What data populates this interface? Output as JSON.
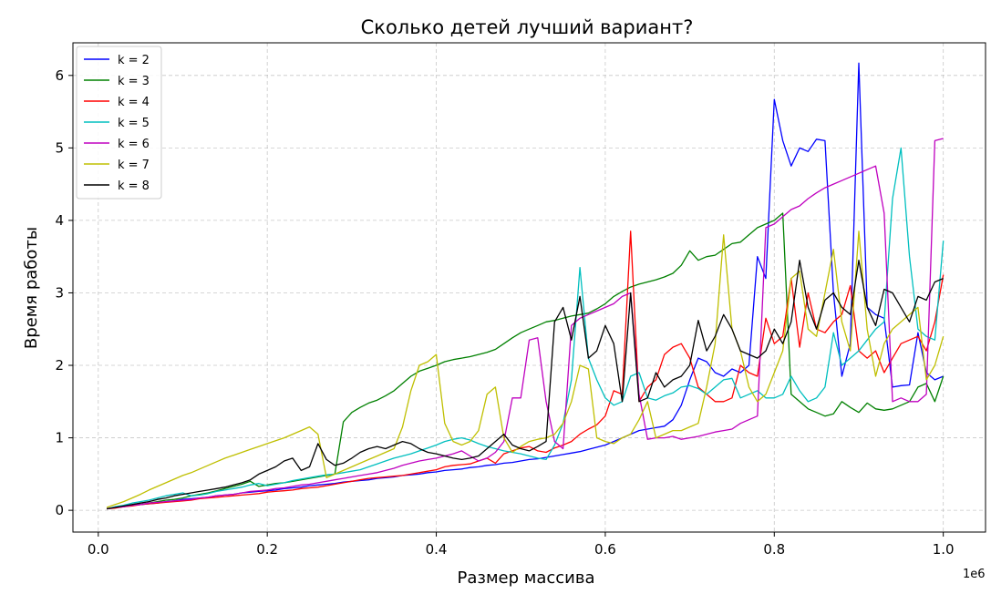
{
  "chart_data": {
    "type": "line",
    "title": "Сколько детей лучший вариант?",
    "xlabel": "Размер массива",
    "ylabel": "Время работы",
    "x_offset_label": "1e6",
    "xlim": [
      -0.03,
      1.05
    ],
    "ylim": [
      -0.3,
      6.45
    ],
    "x_ticks": [
      0.0,
      0.2,
      0.4,
      0.6,
      0.8,
      1.0
    ],
    "x_tick_labels": [
      "0.0",
      "0.2",
      "0.4",
      "0.6",
      "0.8",
      "1.0"
    ],
    "y_ticks": [
      0,
      1,
      2,
      3,
      4,
      5,
      6
    ],
    "y_tick_labels": [
      "0",
      "1",
      "2",
      "3",
      "4",
      "5",
      "6"
    ],
    "grid": true,
    "legend_position": "top-left",
    "x": [
      0.01,
      0.02,
      0.03,
      0.04,
      0.05,
      0.06,
      0.07,
      0.08,
      0.09,
      0.1,
      0.11,
      0.12,
      0.13,
      0.14,
      0.15,
      0.16,
      0.17,
      0.18,
      0.19,
      0.2,
      0.21,
      0.22,
      0.23,
      0.24,
      0.25,
      0.26,
      0.27,
      0.28,
      0.29,
      0.3,
      0.31,
      0.32,
      0.33,
      0.34,
      0.35,
      0.36,
      0.37,
      0.38,
      0.39,
      0.4,
      0.41,
      0.42,
      0.43,
      0.44,
      0.45,
      0.46,
      0.47,
      0.48,
      0.49,
      0.5,
      0.51,
      0.52,
      0.53,
      0.54,
      0.55,
      0.56,
      0.57,
      0.58,
      0.59,
      0.6,
      0.61,
      0.62,
      0.63,
      0.64,
      0.65,
      0.66,
      0.67,
      0.68,
      0.69,
      0.7,
      0.71,
      0.72,
      0.73,
      0.74,
      0.75,
      0.76,
      0.77,
      0.78,
      0.79,
      0.8,
      0.81,
      0.82,
      0.83,
      0.84,
      0.85,
      0.86,
      0.87,
      0.88,
      0.89,
      0.9,
      0.91,
      0.92,
      0.93,
      0.94,
      0.95,
      0.96,
      0.97,
      0.98,
      0.99,
      1.0
    ],
    "series": [
      {
        "name": "k = 2",
        "color": "#0000ff",
        "values": [
          0.02,
          0.04,
          0.05,
          0.07,
          0.08,
          0.09,
          0.1,
          0.12,
          0.13,
          0.15,
          0.16,
          0.17,
          0.18,
          0.2,
          0.21,
          0.22,
          0.24,
          0.25,
          0.26,
          0.27,
          0.28,
          0.3,
          0.31,
          0.32,
          0.34,
          0.35,
          0.36,
          0.37,
          0.39,
          0.4,
          0.41,
          0.42,
          0.44,
          0.45,
          0.46,
          0.48,
          0.49,
          0.5,
          0.52,
          0.53,
          0.55,
          0.56,
          0.57,
          0.59,
          0.6,
          0.62,
          0.63,
          0.65,
          0.66,
          0.68,
          0.7,
          0.71,
          0.73,
          0.75,
          0.77,
          0.79,
          0.81,
          0.84,
          0.87,
          0.9,
          0.95,
          1.0,
          1.05,
          1.1,
          1.12,
          1.14,
          1.16,
          1.25,
          1.45,
          1.8,
          2.1,
          2.05,
          1.9,
          1.85,
          1.95,
          1.9,
          2.0,
          3.5,
          3.2,
          5.67,
          5.1,
          4.75,
          5.0,
          4.95,
          5.12,
          5.1,
          3.0,
          1.85,
          2.3,
          6.17,
          2.8,
          2.7,
          2.65,
          1.7,
          1.72,
          1.73,
          2.45,
          1.9,
          1.8,
          1.85
        ]
      },
      {
        "name": "k = 3",
        "color": "#008000",
        "values": [
          0.02,
          0.04,
          0.06,
          0.07,
          0.08,
          0.1,
          0.12,
          0.14,
          0.15,
          0.17,
          0.2,
          0.22,
          0.24,
          0.27,
          0.3,
          0.33,
          0.36,
          0.4,
          0.33,
          0.35,
          0.37,
          0.38,
          0.4,
          0.42,
          0.44,
          0.46,
          0.48,
          0.5,
          1.22,
          1.35,
          1.42,
          1.48,
          1.52,
          1.58,
          1.65,
          1.75,
          1.85,
          1.92,
          1.96,
          2.0,
          2.05,
          2.08,
          2.1,
          2.12,
          2.15,
          2.18,
          2.22,
          2.3,
          2.38,
          2.45,
          2.5,
          2.55,
          2.6,
          2.62,
          2.65,
          2.68,
          2.7,
          2.72,
          2.78,
          2.85,
          2.95,
          3.02,
          3.08,
          3.12,
          3.15,
          3.18,
          3.22,
          3.27,
          3.38,
          3.58,
          3.45,
          3.5,
          3.52,
          3.6,
          3.68,
          3.7,
          3.8,
          3.9,
          3.95,
          4.0,
          4.1,
          1.6,
          1.5,
          1.4,
          1.35,
          1.3,
          1.33,
          1.5,
          1.42,
          1.35,
          1.48,
          1.4,
          1.38,
          1.4,
          1.45,
          1.5,
          1.7,
          1.75,
          1.5,
          1.85
        ]
      },
      {
        "name": "k = 4",
        "color": "#ff0000",
        "values": [
          0.02,
          0.03,
          0.05,
          0.06,
          0.08,
          0.09,
          0.1,
          0.11,
          0.12,
          0.13,
          0.14,
          0.16,
          0.17,
          0.18,
          0.19,
          0.2,
          0.21,
          0.22,
          0.23,
          0.25,
          0.26,
          0.27,
          0.28,
          0.3,
          0.31,
          0.32,
          0.34,
          0.36,
          0.38,
          0.4,
          0.42,
          0.44,
          0.45,
          0.46,
          0.47,
          0.48,
          0.5,
          0.52,
          0.54,
          0.56,
          0.6,
          0.62,
          0.63,
          0.64,
          0.68,
          0.72,
          0.65,
          0.78,
          0.82,
          0.86,
          0.88,
          0.82,
          0.8,
          0.86,
          0.9,
          0.95,
          1.05,
          1.12,
          1.18,
          1.3,
          1.65,
          1.6,
          3.85,
          1.5,
          1.7,
          1.8,
          2.15,
          2.25,
          2.3,
          2.1,
          1.7,
          1.6,
          1.5,
          1.5,
          1.55,
          2.0,
          1.9,
          1.85,
          2.65,
          2.3,
          2.4,
          3.2,
          2.25,
          3.0,
          2.5,
          2.45,
          2.6,
          2.7,
          3.1,
          2.2,
          2.1,
          2.2,
          1.9,
          2.1,
          2.3,
          2.35,
          2.4,
          2.2,
          2.6,
          3.25
        ]
      },
      {
        "name": "k = 5",
        "color": "#00bfbf",
        "values": [
          0.02,
          0.05,
          0.07,
          0.1,
          0.12,
          0.14,
          0.17,
          0.2,
          0.22,
          0.24,
          0.2,
          0.21,
          0.23,
          0.26,
          0.28,
          0.3,
          0.32,
          0.35,
          0.37,
          0.34,
          0.36,
          0.38,
          0.41,
          0.43,
          0.45,
          0.47,
          0.49,
          0.5,
          0.52,
          0.54,
          0.56,
          0.6,
          0.64,
          0.68,
          0.72,
          0.75,
          0.78,
          0.82,
          0.86,
          0.9,
          0.95,
          0.98,
          1.0,
          0.97,
          0.92,
          0.88,
          0.85,
          0.82,
          0.8,
          0.78,
          0.75,
          0.72,
          0.7,
          0.9,
          1.2,
          1.8,
          3.35,
          2.1,
          1.8,
          1.55,
          1.45,
          1.5,
          1.85,
          1.9,
          1.55,
          1.52,
          1.58,
          1.62,
          1.7,
          1.72,
          1.68,
          1.6,
          1.7,
          1.8,
          1.82,
          1.55,
          1.6,
          1.65,
          1.55,
          1.55,
          1.6,
          1.85,
          1.65,
          1.5,
          1.55,
          1.7,
          2.45,
          2.0,
          2.1,
          2.2,
          2.35,
          2.5,
          2.6,
          4.3,
          5.0,
          3.5,
          2.5,
          2.4,
          2.35,
          3.72
        ]
      },
      {
        "name": "k = 6",
        "color": "#bf00bf",
        "values": [
          0.02,
          0.04,
          0.05,
          0.07,
          0.08,
          0.1,
          0.11,
          0.12,
          0.13,
          0.14,
          0.15,
          0.17,
          0.18,
          0.2,
          0.21,
          0.22,
          0.24,
          0.26,
          0.27,
          0.28,
          0.3,
          0.31,
          0.33,
          0.35,
          0.36,
          0.38,
          0.4,
          0.42,
          0.44,
          0.46,
          0.48,
          0.5,
          0.52,
          0.55,
          0.58,
          0.62,
          0.65,
          0.68,
          0.7,
          0.72,
          0.75,
          0.78,
          0.82,
          0.75,
          0.68,
          0.72,
          0.8,
          0.95,
          1.55,
          1.55,
          2.35,
          2.38,
          1.5,
          0.95,
          0.85,
          2.55,
          2.65,
          2.7,
          2.75,
          2.8,
          2.85,
          2.95,
          3.0,
          1.6,
          0.98,
          1.0,
          1.0,
          1.02,
          0.98,
          1.0,
          1.02,
          1.05,
          1.08,
          1.1,
          1.12,
          1.2,
          1.25,
          1.3,
          3.9,
          3.95,
          4.05,
          4.15,
          4.2,
          4.3,
          4.38,
          4.45,
          4.5,
          4.55,
          4.6,
          4.65,
          4.7,
          4.75,
          4.1,
          1.5,
          1.55,
          1.5,
          1.5,
          1.6,
          5.1,
          5.13
        ]
      },
      {
        "name": "k = 7",
        "color": "#bfbf00",
        "values": [
          0.04,
          0.08,
          0.12,
          0.17,
          0.22,
          0.28,
          0.33,
          0.38,
          0.43,
          0.48,
          0.52,
          0.57,
          0.62,
          0.67,
          0.72,
          0.76,
          0.8,
          0.84,
          0.88,
          0.92,
          0.96,
          1.0,
          1.05,
          1.1,
          1.15,
          1.05,
          0.45,
          0.5,
          0.55,
          0.6,
          0.65,
          0.7,
          0.75,
          0.8,
          0.85,
          1.15,
          1.65,
          2.0,
          2.05,
          2.15,
          1.2,
          0.95,
          0.9,
          0.95,
          1.1,
          1.6,
          1.7,
          1.0,
          0.8,
          0.88,
          0.95,
          0.98,
          1.0,
          1.05,
          1.2,
          1.5,
          2.0,
          1.95,
          1.0,
          0.95,
          0.92,
          1.0,
          1.05,
          1.25,
          1.5,
          1.0,
          1.05,
          1.1,
          1.1,
          1.15,
          1.2,
          1.7,
          2.3,
          3.8,
          2.5,
          2.2,
          1.7,
          1.5,
          1.6,
          1.9,
          2.2,
          3.2,
          3.3,
          2.5,
          2.4,
          3.0,
          3.6,
          2.6,
          2.2,
          3.85,
          2.5,
          1.85,
          2.3,
          2.5,
          2.6,
          2.7,
          2.8,
          1.8,
          2.0,
          2.4
        ]
      },
      {
        "name": "k = 8",
        "color": "#000000",
        "values": [
          0.02,
          0.04,
          0.06,
          0.08,
          0.1,
          0.12,
          0.15,
          0.17,
          0.2,
          0.22,
          0.24,
          0.26,
          0.28,
          0.3,
          0.32,
          0.35,
          0.38,
          0.42,
          0.5,
          0.55,
          0.6,
          0.68,
          0.72,
          0.55,
          0.6,
          0.92,
          0.7,
          0.62,
          0.65,
          0.72,
          0.8,
          0.85,
          0.88,
          0.85,
          0.9,
          0.95,
          0.92,
          0.85,
          0.8,
          0.78,
          0.75,
          0.72,
          0.7,
          0.72,
          0.75,
          0.85,
          0.95,
          1.05,
          0.9,
          0.85,
          0.82,
          0.88,
          0.95,
          2.6,
          2.8,
          2.35,
          2.95,
          2.1,
          2.2,
          2.55,
          2.3,
          1.5,
          3.0,
          1.5,
          1.55,
          1.9,
          1.7,
          1.8,
          1.85,
          2.0,
          2.62,
          2.2,
          2.4,
          2.7,
          2.5,
          2.2,
          2.15,
          2.1,
          2.2,
          2.5,
          2.3,
          2.6,
          3.45,
          2.8,
          2.5,
          2.9,
          3.0,
          2.8,
          2.7,
          3.45,
          2.8,
          2.55,
          3.05,
          3.0,
          2.8,
          2.6,
          2.95,
          2.9,
          3.15,
          3.2
        ]
      }
    ]
  }
}
